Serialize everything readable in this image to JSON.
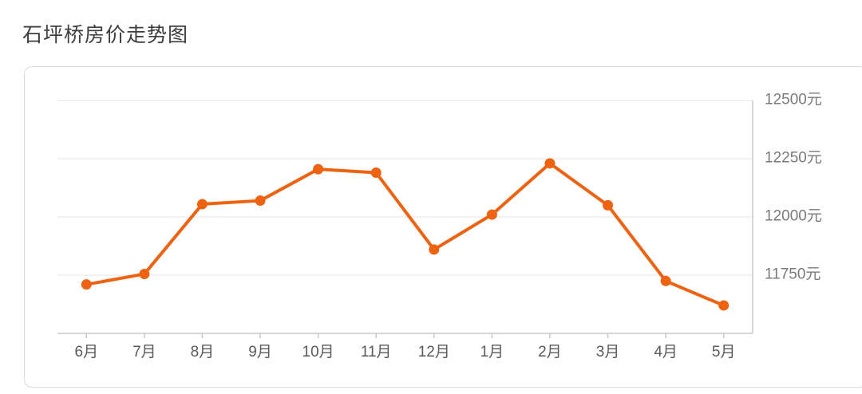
{
  "page": {
    "title": "石坪桥房价走势图"
  },
  "chart_data": {
    "type": "line",
    "title": "石坪桥房价走势图",
    "categories": [
      "6月",
      "7月",
      "8月",
      "9月",
      "10月",
      "11月",
      "12月",
      "1月",
      "2月",
      "3月",
      "4月",
      "5月"
    ],
    "values": [
      11710,
      11755,
      12055,
      12070,
      12205,
      12190,
      11860,
      12010,
      12230,
      12050,
      11725,
      11620
    ],
    "unit": "元",
    "ylim": [
      11500,
      12500
    ],
    "y_ticks": [
      {
        "value": 11750,
        "label": "11750元"
      },
      {
        "value": 12000,
        "label": "12000元"
      },
      {
        "value": 12250,
        "label": "12250元"
      },
      {
        "value": 12500,
        "label": "12500元"
      }
    ],
    "grid": true,
    "legend_position": "none",
    "colors": {
      "line": "#ee6312",
      "marker": "#ee6312",
      "grid": "#e5e5e5",
      "axis": "#c9c9c9",
      "x_label": "#5a5a5a",
      "y_label": "#7a7a7a",
      "title": "#3d3d3d",
      "panel_border": "#dcdcdc",
      "background": "#ffffff"
    }
  }
}
